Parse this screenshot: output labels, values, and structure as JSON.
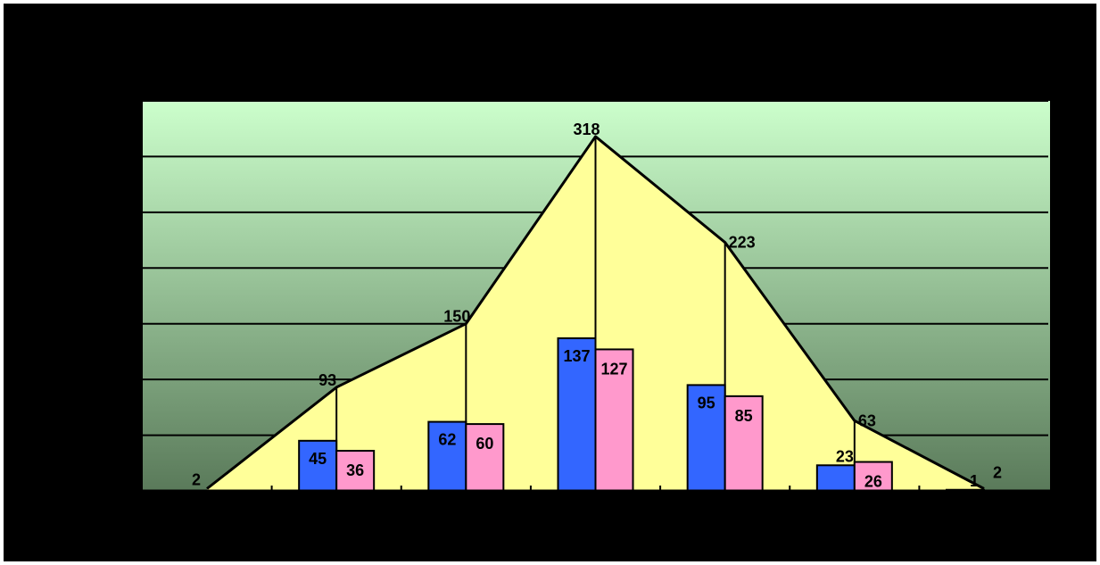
{
  "chart_data": {
    "type": "bar",
    "categories": [
      "",
      "",
      "",
      "",
      "",
      "",
      ""
    ],
    "series": [
      {
        "values": [
          null,
          45,
          62,
          137,
          95,
          23,
          1
        ]
      },
      {
        "values": [
          null,
          36,
          60,
          127,
          85,
          26,
          null
        ]
      }
    ],
    "total_line": {
      "type": "area",
      "values": [
        2,
        93,
        150,
        318,
        223,
        63,
        2
      ]
    },
    "ylim": [
      0,
      350
    ],
    "grid": true,
    "colors": {
      "series_1": "#3366ff",
      "series_2": "#ff99cc",
      "area_fill": "#ffff99",
      "plot_top": "#ccffcc",
      "plot_bottom": "#5a7a5a",
      "frame": "#000000"
    }
  }
}
